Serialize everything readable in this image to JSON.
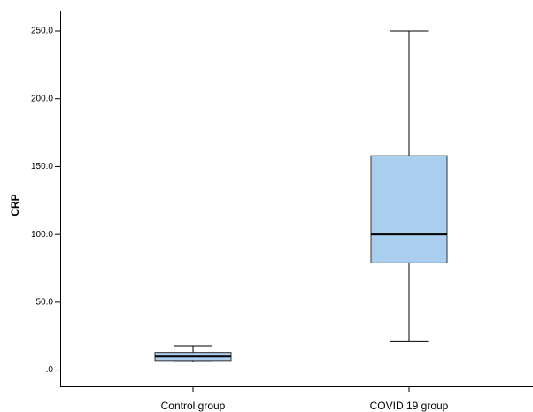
{
  "chart_data": {
    "type": "box",
    "y_label": "CRP",
    "categories": [
      "Control group",
      "COVID 19 group"
    ],
    "boxes": [
      {
        "min": 6,
        "q1": 7,
        "median": 10,
        "q3": 13,
        "max": 18
      },
      {
        "min": 21,
        "q1": 79,
        "median": 100,
        "q3": 158,
        "max": 250
      }
    ],
    "color": "#aacfee",
    "ylim": [
      -12,
      265
    ],
    "yticks": [
      {
        "value": 0,
        "label": ".0"
      },
      {
        "value": 50,
        "label": "50.0"
      },
      {
        "value": 100,
        "label": "100.0"
      },
      {
        "value": 150,
        "label": "150.0"
      },
      {
        "value": 200,
        "label": "200.0"
      },
      {
        "value": 250,
        "label": "250.0"
      }
    ]
  }
}
